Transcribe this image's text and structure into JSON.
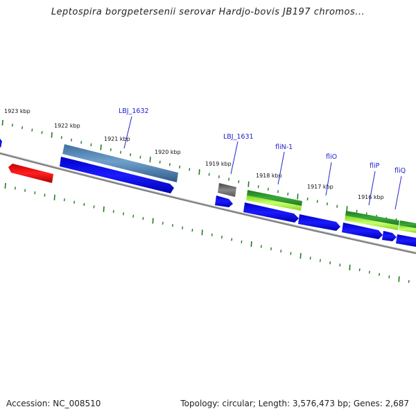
{
  "title": "Leptospira borgpetersenii serovar Hardjo-bovis JB197 chromos...",
  "footer": {
    "accession": "Accession: NC_008510",
    "summary": "Topology: circular; Length: 3,576,473 bp; Genes: 2,687"
  },
  "colors": {
    "forward_cds": "#0000ee",
    "reverse_cds": "#ee0000",
    "gene_blue_feature": "#4a83b6",
    "gene_grey_feature": "#666666",
    "gene_green_feature": "#2b8f2b",
    "gene_lightgreen_feature": "#a8f03a",
    "backbone": "#8a8a8a",
    "tick": "#1e7a1e"
  },
  "ruler_labels": [
    "1923 kbp",
    "1922 kbp",
    "1921 kbp",
    "1920 kbp",
    "1919 kbp",
    "1918 kbp",
    "1917 kbp",
    "1916 kbp"
  ],
  "gene_labels": [
    "LBJ_1632",
    "LBJ_1631",
    "fliN-1",
    "fliO",
    "fliP",
    "fliQ"
  ]
}
